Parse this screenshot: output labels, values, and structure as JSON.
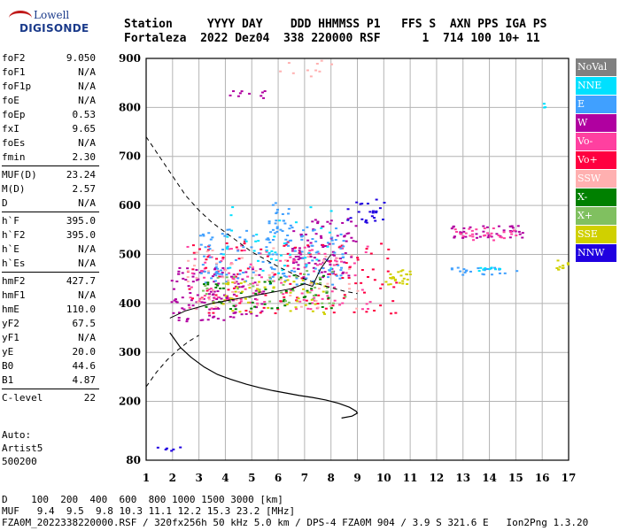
{
  "logo": {
    "line1": "Lowell",
    "line2": "DIGISONDE"
  },
  "header": {
    "line1": "Station     YYYY DAY    DDD HHMMSS P1   FFS S  AXN PPS IGA PS",
    "line2": "Fortaleza  2022 Dez04  338 220000 RSF      1  714 100 10+ 11"
  },
  "params": [
    {
      "key": "foF2",
      "value": "9.050"
    },
    {
      "key": "foF1",
      "value": "N/A"
    },
    {
      "key": "foF1p",
      "value": "N/A"
    },
    {
      "key": "foE",
      "value": "N/A"
    },
    {
      "key": "foEp",
      "value": "0.53"
    },
    {
      "key": "fxI",
      "value": "9.65"
    },
    {
      "key": "foEs",
      "value": "N/A"
    },
    {
      "key": "fmin",
      "value": "2.30"
    },
    {
      "sep": true
    },
    {
      "key": "MUF(D)",
      "value": "23.24"
    },
    {
      "key": "M(D)",
      "value": "2.57"
    },
    {
      "key": "D",
      "value": "N/A"
    },
    {
      "sep": true
    },
    {
      "key": "h`F",
      "value": "395.0"
    },
    {
      "key": "h`F2",
      "value": "395.0"
    },
    {
      "key": "h`E",
      "value": "N/A"
    },
    {
      "key": "h`Es",
      "value": "N/A"
    },
    {
      "sep": true
    },
    {
      "key": "hmF2",
      "value": "427.7"
    },
    {
      "key": "hmF1",
      "value": "N/A"
    },
    {
      "key": "hmE",
      "value": "110.0"
    },
    {
      "key": "yF2",
      "value": "67.5"
    },
    {
      "key": "yF1",
      "value": "N/A"
    },
    {
      "key": "yE",
      "value": "20.0"
    },
    {
      "key": "B0",
      "value": "44.6"
    },
    {
      "key": "B1",
      "value": "4.87"
    },
    {
      "sep": true
    },
    {
      "key": "C-level",
      "value": "22"
    }
  ],
  "auto": {
    "l1": "Auto:",
    "l2": "Artist5",
    "l3": "500200"
  },
  "legend": [
    {
      "label": "NoVal",
      "color": "#808080"
    },
    {
      "label": "NNE",
      "color": "#00e0ff"
    },
    {
      "label": "E",
      "color": "#40a0ff"
    },
    {
      "label": "W",
      "color": "#b000a0"
    },
    {
      "label": "Vo-",
      "color": "#ff40a0"
    },
    {
      "label": "Vo+",
      "color": "#ff0040"
    },
    {
      "label": "SSW",
      "color": "#ffb0b0"
    },
    {
      "label": "X-",
      "color": "#008000"
    },
    {
      "label": "X+",
      "color": "#80c060"
    },
    {
      "label": "SSE",
      "color": "#d0d000"
    },
    {
      "label": "NNW",
      "color": "#2000e0"
    }
  ],
  "footer": {
    "d_row": "D    100  200  400  600  800 1000 1500 3000 [km]",
    "muf_row": "MUF   9.4  9.5  9.8 10.3 11.1 12.2 15.3 23.2 [MHz]",
    "file_row": "FZA0M_2022338220000.RSF / 320fx256h 50 kHz 5.0 km / DPS-4 FZA0M 904 / 3.9 S 321.6 E   Ion2Png 1.3.20"
  },
  "chart_data": {
    "type": "scatter",
    "x_ticks": [
      1,
      2,
      3,
      4,
      5,
      6,
      7,
      8,
      9,
      10,
      11,
      12,
      13,
      14,
      15,
      16,
      17
    ],
    "y_ticks": [
      80,
      200,
      300,
      400,
      500,
      600,
      700,
      800,
      900
    ],
    "xlim": [
      1,
      17
    ],
    "ylim": [
      80,
      900
    ],
    "grid": true,
    "clusters": [
      {
        "series": "W",
        "x": [
          1.9,
          5.5
        ],
        "y": [
          365,
          475
        ],
        "n": 120
      },
      {
        "series": "W",
        "x": [
          6.5,
          9.0
        ],
        "y": [
          455,
          575
        ],
        "n": 90
      },
      {
        "series": "W",
        "x": [
          4.0,
          5.5
        ],
        "y": [
          815,
          840
        ],
        "n": 10
      },
      {
        "series": "Vo-",
        "x": [
          2.5,
          9.5
        ],
        "y": [
          390,
          520
        ],
        "n": 120
      },
      {
        "series": "Vo+",
        "x": [
          2.5,
          10.5
        ],
        "y": [
          380,
          530
        ],
        "n": 110
      },
      {
        "series": "E",
        "x": [
          3.0,
          8.5
        ],
        "y": [
          440,
          560
        ],
        "n": 140
      },
      {
        "series": "E",
        "x": [
          5.5,
          6.5
        ],
        "y": [
          530,
          610
        ],
        "n": 30
      },
      {
        "series": "NNE",
        "x": [
          3.5,
          8.0
        ],
        "y": [
          450,
          600
        ],
        "n": 40
      },
      {
        "series": "NNE",
        "x": [
          16.0,
          16.2
        ],
        "y": [
          800,
          810
        ],
        "n": 3
      },
      {
        "series": "X-",
        "x": [
          3.0,
          8.0
        ],
        "y": [
          390,
          460
        ],
        "n": 50
      },
      {
        "series": "X+",
        "x": [
          3.0,
          8.5
        ],
        "y": [
          400,
          470
        ],
        "n": 40
      },
      {
        "series": "SSE",
        "x": [
          3.5,
          8.0
        ],
        "y": [
          380,
          450
        ],
        "n": 50
      },
      {
        "series": "SSE",
        "x": [
          10.0,
          11.0
        ],
        "y": [
          440,
          470
        ],
        "n": 25
      },
      {
        "series": "SSE",
        "x": [
          16.5,
          17.0
        ],
        "y": [
          470,
          490
        ],
        "n": 10
      },
      {
        "series": "SSW",
        "x": [
          2.5,
          9.0
        ],
        "y": [
          390,
          520
        ],
        "n": 60
      },
      {
        "series": "SSW",
        "x": [
          6.0,
          8.0
        ],
        "y": [
          865,
          900
        ],
        "n": 10
      },
      {
        "series": "NNW",
        "x": [
          8.5,
          10.0
        ],
        "y": [
          560,
          615
        ],
        "n": 25
      },
      {
        "series": "NNW",
        "x": [
          1.3,
          2.3
        ],
        "y": [
          100,
          110
        ],
        "n": 6
      },
      {
        "series": "W",
        "x": [
          12.5,
          15.3
        ],
        "y": [
          535,
          560
        ],
        "n": 40
      },
      {
        "series": "E",
        "x": [
          12.5,
          15.0
        ],
        "y": [
          460,
          475
        ],
        "n": 25
      },
      {
        "series": "Vo-",
        "x": [
          12.5,
          15.0
        ],
        "y": [
          530,
          555
        ],
        "n": 30
      },
      {
        "series": "NNE",
        "x": [
          13.5,
          14.5
        ],
        "y": [
          465,
          475
        ],
        "n": 8
      }
    ],
    "profile_curve": [
      [
        1.9,
        340
      ],
      [
        2.3,
        310
      ],
      [
        2.7,
        290
      ],
      [
        3.2,
        270
      ],
      [
        3.7,
        255
      ],
      [
        4.2,
        245
      ],
      [
        4.8,
        235
      ],
      [
        5.3,
        228
      ],
      [
        5.8,
        222
      ],
      [
        6.3,
        217
      ],
      [
        6.8,
        212
      ],
      [
        7.3,
        208
      ],
      [
        7.8,
        203
      ],
      [
        8.3,
        196
      ],
      [
        8.7,
        188
      ],
      [
        8.95,
        180
      ],
      [
        9.0,
        176
      ],
      [
        8.8,
        170
      ],
      [
        8.4,
        166
      ]
    ],
    "dashed_curve": [
      [
        1.0,
        740
      ],
      [
        1.5,
        700
      ],
      [
        2.0,
        660
      ],
      [
        2.5,
        620
      ],
      [
        3.0,
        590
      ],
      [
        3.5,
        565
      ],
      [
        4.0,
        545
      ],
      [
        4.5,
        525
      ],
      [
        5.0,
        505
      ],
      [
        5.5,
        490
      ],
      [
        6.0,
        475
      ],
      [
        6.5,
        462
      ],
      [
        7.0,
        450
      ],
      [
        7.5,
        440
      ],
      [
        8.0,
        432
      ],
      [
        8.5,
        425
      ],
      [
        9.0,
        420
      ]
    ],
    "dashed_lower": [
      [
        1.0,
        230
      ],
      [
        1.4,
        260
      ],
      [
        1.8,
        285
      ],
      [
        2.2,
        305
      ],
      [
        2.6,
        322
      ],
      [
        3.0,
        335
      ]
    ],
    "trace_line": [
      [
        1.9,
        370
      ],
      [
        2.5,
        385
      ],
      [
        3.5,
        400
      ],
      [
        4.5,
        410
      ],
      [
        5.5,
        420
      ],
      [
        6.5,
        430
      ],
      [
        7.0,
        440
      ],
      [
        7.3,
        435
      ],
      [
        7.6,
        470
      ],
      [
        8.0,
        500
      ]
    ]
  }
}
